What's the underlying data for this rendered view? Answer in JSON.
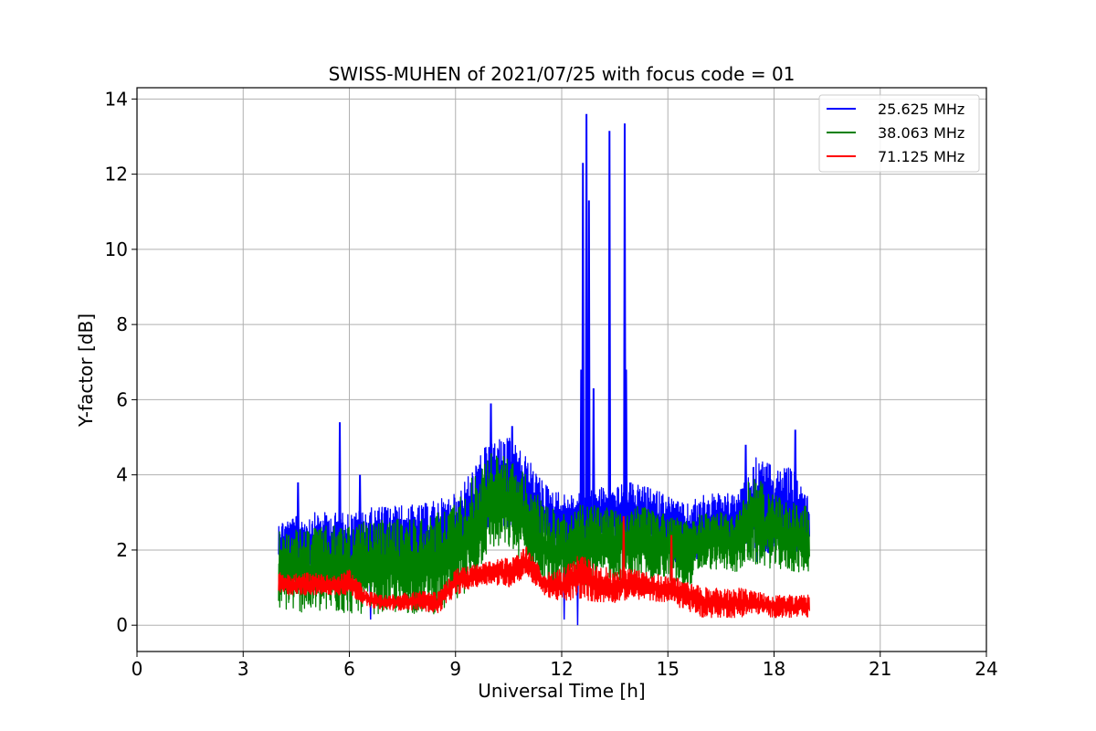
{
  "chart_data": {
    "type": "line",
    "title": "SWISS-MUHEN of 2021/07/25 with focus code = 01",
    "xlabel": "Universal Time [h]",
    "ylabel": "Y-factor [dB]",
    "xlim": [
      0,
      24
    ],
    "ylim": [
      -0.7,
      14.3
    ],
    "xticks": [
      0,
      3,
      6,
      9,
      12,
      15,
      18,
      21,
      24
    ],
    "yticks": [
      0,
      2,
      4,
      6,
      8,
      10,
      12,
      14
    ],
    "grid": true,
    "legend_position": "top-right",
    "x_range_data": [
      4.0,
      19.0
    ],
    "series": [
      {
        "name": "25.625 MHz",
        "color": "#0000ff",
        "envelope_x": [
          4.0,
          5.0,
          6.0,
          7.0,
          8.0,
          9.0,
          9.5,
          10.0,
          10.5,
          11.0,
          11.5,
          12.0,
          12.5,
          13.0,
          13.5,
          14.0,
          15.0,
          15.5,
          16.0,
          17.0,
          17.5,
          18.0,
          18.5,
          19.0
        ],
        "envelope_low": [
          1.5,
          1.4,
          1.4,
          1.3,
          1.3,
          1.5,
          2.0,
          2.6,
          2.6,
          2.4,
          2.0,
          1.9,
          1.9,
          2.0,
          2.0,
          2.0,
          1.8,
          1.4,
          1.9,
          1.9,
          1.6,
          1.9,
          1.9,
          1.9
        ],
        "envelope_high": [
          2.8,
          3.0,
          3.0,
          3.2,
          3.2,
          3.5,
          4.2,
          5.0,
          5.0,
          4.5,
          3.8,
          3.5,
          3.5,
          3.7,
          3.7,
          3.8,
          3.5,
          3.2,
          3.5,
          3.5,
          4.5,
          4.2,
          4.2,
          3.5
        ],
        "spikes": [
          {
            "x": 4.55,
            "y": 3.8
          },
          {
            "x": 5.73,
            "y": 5.4
          },
          {
            "x": 6.3,
            "y": 4.0
          },
          {
            "x": 10.0,
            "y": 5.9
          },
          {
            "x": 10.6,
            "y": 5.3
          },
          {
            "x": 12.55,
            "y": 6.8
          },
          {
            "x": 12.6,
            "y": 12.3
          },
          {
            "x": 12.7,
            "y": 13.6
          },
          {
            "x": 12.77,
            "y": 11.3
          },
          {
            "x": 12.9,
            "y": 6.3
          },
          {
            "x": 13.35,
            "y": 13.15
          },
          {
            "x": 13.78,
            "y": 13.35
          },
          {
            "x": 13.82,
            "y": 6.8
          },
          {
            "x": 17.2,
            "y": 4.8
          },
          {
            "x": 18.6,
            "y": 5.2
          }
        ],
        "dips": [
          {
            "x": 6.6,
            "y": 0.15
          },
          {
            "x": 12.07,
            "y": 0.15
          },
          {
            "x": 12.45,
            "y": 0.0
          }
        ]
      },
      {
        "name": "38.063 MHz",
        "color": "#008000",
        "envelope_x": [
          4.0,
          5.0,
          6.0,
          7.0,
          8.0,
          8.5,
          9.0,
          9.5,
          10.0,
          10.5,
          11.0,
          11.5,
          12.0,
          12.5,
          13.0,
          14.0,
          15.0,
          15.5,
          16.0,
          17.0,
          17.3,
          18.0,
          18.5,
          19.0
        ],
        "envelope_low": [
          0.4,
          0.3,
          0.3,
          0.3,
          0.3,
          0.3,
          0.5,
          1.2,
          2.0,
          2.0,
          1.6,
          1.0,
          0.8,
          1.0,
          1.2,
          1.2,
          1.2,
          0.9,
          1.5,
          1.4,
          1.6,
          1.5,
          1.4,
          1.4
        ],
        "envelope_high": [
          2.5,
          2.6,
          2.7,
          2.8,
          2.9,
          3.0,
          3.3,
          4.0,
          4.6,
          4.5,
          4.0,
          3.2,
          3.0,
          3.2,
          3.2,
          3.2,
          3.0,
          2.8,
          3.0,
          3.0,
          4.1,
          3.5,
          3.3,
          3.2
        ]
      },
      {
        "name": "71.125 MHz",
        "color": "#ff0000",
        "envelope_x": [
          4.0,
          5.0,
          5.5,
          6.0,
          6.5,
          7.0,
          8.0,
          8.5,
          9.0,
          9.5,
          10.0,
          10.5,
          11.0,
          11.5,
          12.0,
          12.5,
          13.0,
          13.5,
          14.0,
          15.0,
          15.5,
          16.0,
          17.0,
          17.5,
          18.0,
          19.0
        ],
        "envelope_low": [
          0.8,
          0.8,
          0.8,
          0.8,
          0.5,
          0.4,
          0.4,
          0.3,
          0.8,
          1.0,
          1.1,
          1.0,
          1.3,
          0.8,
          0.6,
          0.7,
          0.6,
          0.6,
          0.7,
          0.6,
          0.4,
          0.2,
          0.2,
          0.3,
          0.2,
          0.2
        ],
        "envelope_high": [
          1.4,
          1.4,
          1.3,
          1.5,
          0.9,
          0.8,
          0.9,
          0.9,
          1.5,
          1.6,
          1.7,
          1.8,
          2.1,
          1.4,
          1.5,
          1.9,
          1.6,
          1.5,
          1.5,
          1.3,
          1.2,
          1.0,
          1.0,
          0.9,
          0.8,
          0.8
        ],
        "spikes": [
          {
            "x": 13.75,
            "y": 2.9
          },
          {
            "x": 15.1,
            "y": 2.4
          }
        ]
      }
    ]
  }
}
